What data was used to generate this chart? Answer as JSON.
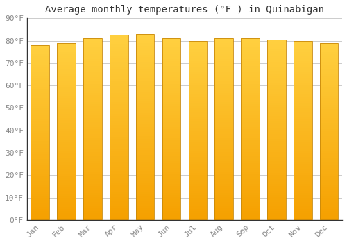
{
  "title": "Average monthly temperatures (°F ) in Quinabigan",
  "months": [
    "Jan",
    "Feb",
    "Mar",
    "Apr",
    "May",
    "Jun",
    "Jul",
    "Aug",
    "Sep",
    "Oct",
    "Nov",
    "Dec"
  ],
  "values": [
    78,
    79,
    81,
    82.5,
    83,
    81,
    80,
    81,
    81,
    80.5,
    80,
    79
  ],
  "ylim": [
    0,
    90
  ],
  "yticks": [
    0,
    10,
    20,
    30,
    40,
    50,
    60,
    70,
    80,
    90
  ],
  "bar_color_bottom": "#F5A000",
  "bar_color_top": "#FFD040",
  "bar_edge_color": "#C8880A",
  "background_color": "#FFFFFF",
  "grid_color": "#CCCCCC",
  "title_fontsize": 10,
  "tick_fontsize": 8,
  "bar_width": 0.7
}
